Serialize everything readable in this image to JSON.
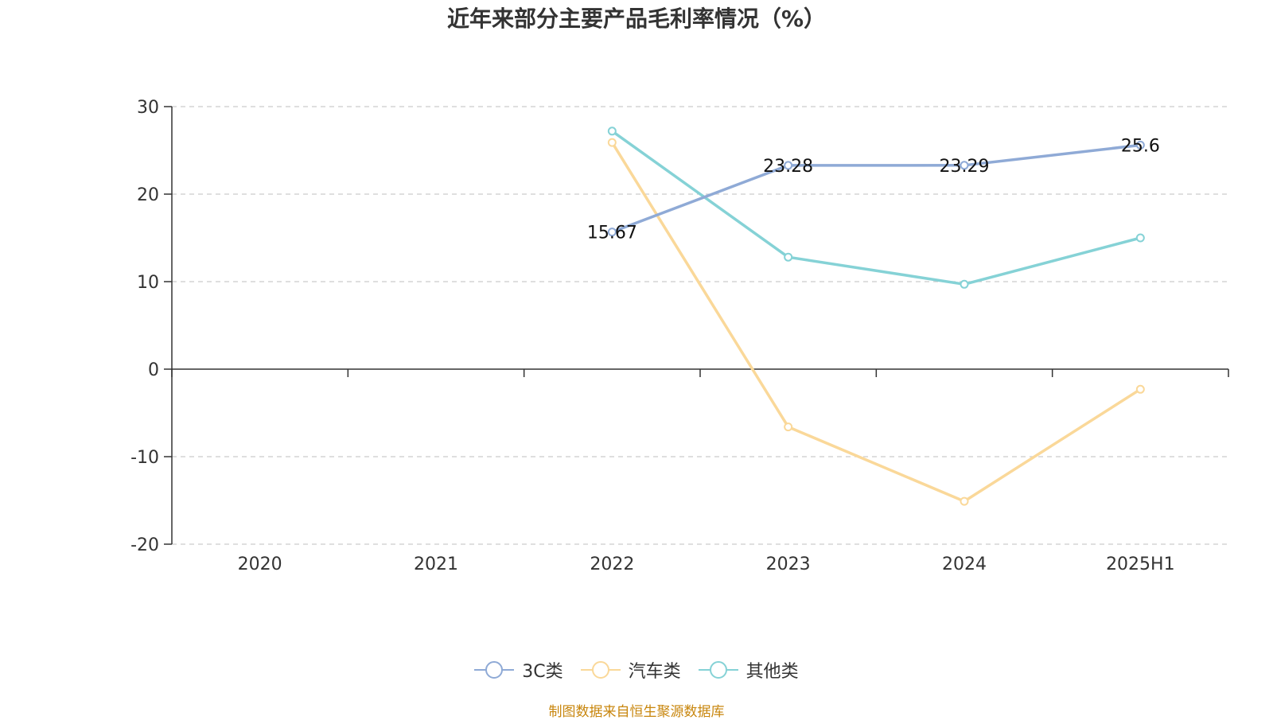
{
  "title": "近年来部分主要产品毛利率情况（%）",
  "source_note": "制图数据来自恒生聚源数据库",
  "chart_data": {
    "type": "line",
    "title": "近年来部分主要产品毛利率情况（%）",
    "categories": [
      "2020",
      "2021",
      "2022",
      "2023",
      "2024",
      "2025H1"
    ],
    "ylim": [
      -20,
      30
    ],
    "yticks": [
      30,
      20,
      10,
      0,
      -10,
      -20
    ],
    "grid": true,
    "legend_position": "bottom",
    "series": [
      {
        "name": "3C类",
        "color": "#8faad6",
        "values": [
          null,
          null,
          15.67,
          23.28,
          23.29,
          25.6
        ],
        "labels": [
          "",
          "",
          "15.67",
          "23.28",
          "23.29",
          "25.6"
        ]
      },
      {
        "name": "汽车类",
        "color": "#fad899",
        "values": [
          null,
          null,
          25.9,
          -6.6,
          -15.1,
          -2.3
        ],
        "labels": [
          "",
          "",
          "",
          "",
          "",
          ""
        ]
      },
      {
        "name": "其他类",
        "color": "#85d2d6",
        "values": [
          null,
          null,
          27.2,
          12.8,
          9.7,
          15.0
        ],
        "labels": [
          "",
          "",
          "",
          "",
          "",
          ""
        ]
      }
    ]
  }
}
